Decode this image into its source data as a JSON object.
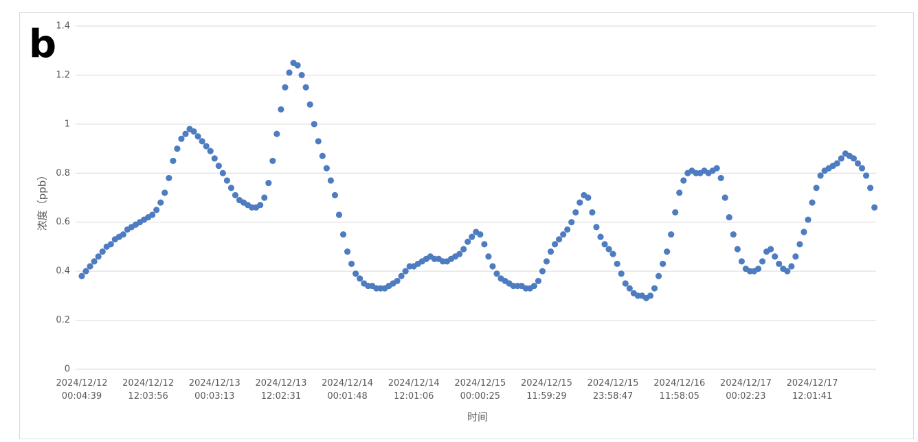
{
  "chart_data": {
    "type": "scatter",
    "panel_label": "b",
    "xlabel": "时间",
    "ylabel": "浓度（ppb）",
    "color": "#4e7cc0",
    "grid": true,
    "ylim": [
      0,
      1.4
    ],
    "yticks": [
      0,
      0.2,
      0.4,
      0.6,
      0.8,
      1,
      1.2,
      1.4
    ],
    "categories": [
      "2024/12/12 00:04:39",
      null,
      null,
      null,
      null,
      null,
      null,
      null,
      null,
      null,
      null,
      null,
      null,
      null,
      null,
      null,
      "2024/12/12 12:03:56",
      null,
      null,
      null,
      null,
      null,
      null,
      null,
      null,
      null,
      null,
      null,
      null,
      null,
      null,
      null,
      "2024/12/13 00:03:13",
      null,
      null,
      null,
      null,
      null,
      null,
      null,
      null,
      null,
      null,
      null,
      null,
      null,
      null,
      null,
      "2024/12/13 12:02:31",
      null,
      null,
      null,
      null,
      null,
      null,
      null,
      null,
      null,
      null,
      null,
      null,
      null,
      null,
      null,
      "2024/12/14 00:01:48",
      null,
      null,
      null,
      null,
      null,
      null,
      null,
      null,
      null,
      null,
      null,
      null,
      null,
      null,
      null,
      "2024/12/14 12:01:06",
      null,
      null,
      null,
      null,
      null,
      null,
      null,
      null,
      null,
      null,
      null,
      null,
      null,
      null,
      null,
      "2024/12/15 00:00:25",
      null,
      null,
      null,
      null,
      null,
      null,
      null,
      null,
      null,
      null,
      null,
      null,
      null,
      null,
      null,
      "2024/12/15 11:59:29",
      null,
      null,
      null,
      null,
      null,
      null,
      null,
      null,
      null,
      null,
      null,
      null,
      null,
      null,
      null,
      "2024/12/15 23:58:47",
      null,
      null,
      null,
      null,
      null,
      null,
      null,
      null,
      null,
      null,
      null,
      null,
      null,
      null,
      null,
      "2024/12/16 11:58:05",
      null,
      null,
      null,
      null,
      null,
      null,
      null,
      null,
      null,
      null,
      null,
      null,
      null,
      null,
      null,
      "2024/12/17 00:02:23",
      null,
      null,
      null,
      null,
      null,
      null,
      null,
      null,
      null,
      null,
      null,
      null,
      null,
      null,
      null,
      "2024/12/17 12:01:41",
      null,
      null,
      null,
      null,
      null,
      null,
      null,
      null,
      null,
      null,
      null,
      null,
      null,
      null,
      null
    ],
    "values": [
      0.38,
      0.4,
      0.42,
      0.44,
      0.46,
      0.48,
      0.5,
      0.51,
      0.53,
      0.54,
      0.55,
      0.57,
      0.58,
      0.59,
      0.6,
      0.61,
      0.62,
      0.63,
      0.65,
      0.68,
      0.72,
      0.78,
      0.85,
      0.9,
      0.94,
      0.96,
      0.98,
      0.97,
      0.95,
      0.93,
      0.91,
      0.89,
      0.86,
      0.83,
      0.8,
      0.77,
      0.74,
      0.71,
      0.69,
      0.68,
      0.67,
      0.66,
      0.66,
      0.67,
      0.7,
      0.76,
      0.85,
      0.96,
      1.06,
      1.15,
      1.21,
      1.25,
      1.24,
      1.2,
      1.15,
      1.08,
      1.0,
      0.93,
      0.87,
      0.82,
      0.77,
      0.71,
      0.63,
      0.55,
      0.48,
      0.43,
      0.39,
      0.37,
      0.35,
      0.34,
      0.34,
      0.33,
      0.33,
      0.33,
      0.34,
      0.35,
      0.36,
      0.38,
      0.4,
      0.42,
      0.42,
      0.43,
      0.44,
      0.45,
      0.46,
      0.45,
      0.45,
      0.44,
      0.44,
      0.45,
      0.46,
      0.47,
      0.49,
      0.52,
      0.54,
      0.56,
      0.55,
      0.51,
      0.46,
      0.42,
      0.39,
      0.37,
      0.36,
      0.35,
      0.34,
      0.34,
      0.34,
      0.33,
      0.33,
      0.34,
      0.36,
      0.4,
      0.44,
      0.48,
      0.51,
      0.53,
      0.55,
      0.57,
      0.6,
      0.64,
      0.68,
      0.71,
      0.7,
      0.64,
      0.58,
      0.54,
      0.51,
      0.49,
      0.47,
      0.43,
      0.39,
      0.35,
      0.33,
      0.31,
      0.3,
      0.3,
      0.29,
      0.3,
      0.33,
      0.38,
      0.43,
      0.48,
      0.55,
      0.64,
      0.72,
      0.77,
      0.8,
      0.81,
      0.8,
      0.8,
      0.81,
      0.8,
      0.81,
      0.82,
      0.78,
      0.7,
      0.62,
      0.55,
      0.49,
      0.44,
      0.41,
      0.4,
      0.4,
      0.41,
      0.44,
      0.48,
      0.49,
      0.46,
      0.43,
      0.41,
      0.4,
      0.42,
      0.46,
      0.51,
      0.56,
      0.61,
      0.68,
      0.74,
      0.79,
      0.81,
      0.82,
      0.83,
      0.84,
      0.86,
      0.88,
      0.87,
      0.86,
      0.84,
      0.82,
      0.79,
      0.74,
      0.66
    ]
  }
}
